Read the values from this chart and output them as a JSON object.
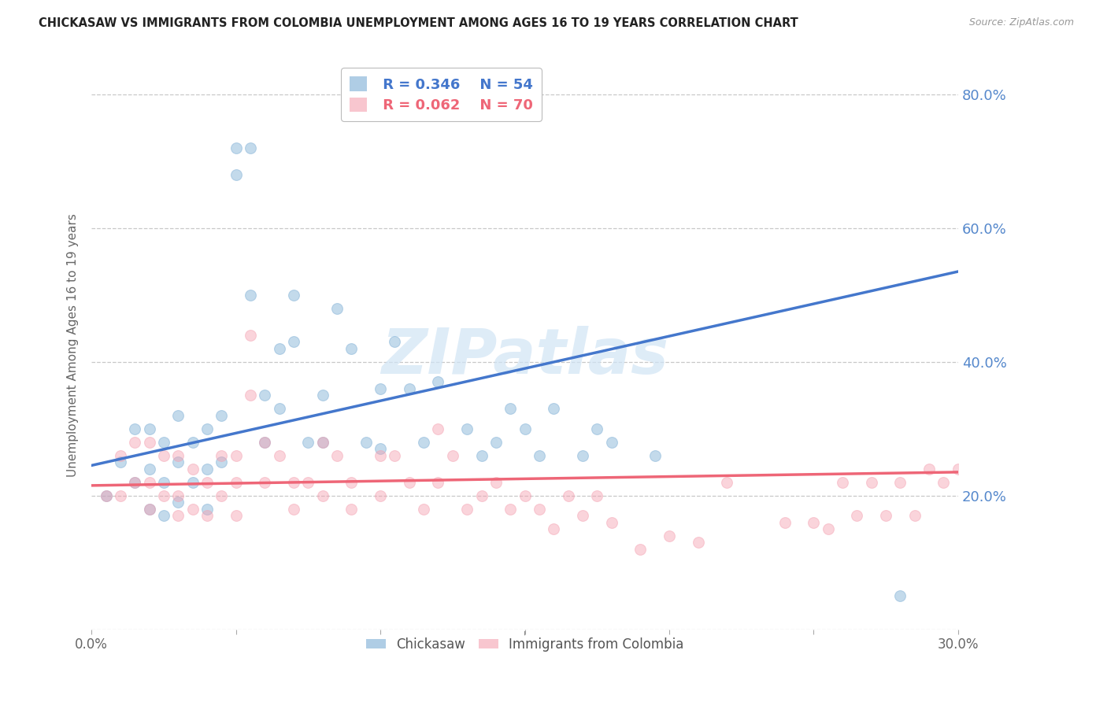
{
  "title": "CHICKASAW VS IMMIGRANTS FROM COLOMBIA UNEMPLOYMENT AMONG AGES 16 TO 19 YEARS CORRELATION CHART",
  "source": "Source: ZipAtlas.com",
  "ylabel": "Unemployment Among Ages 16 to 19 years",
  "xlim": [
    0.0,
    0.3
  ],
  "ylim": [
    0.0,
    0.85
  ],
  "y_ticks": [
    0.0,
    0.2,
    0.4,
    0.6,
    0.8
  ],
  "y_tick_labels_right": [
    "",
    "20.0%",
    "40.0%",
    "60.0%",
    "80.0%"
  ],
  "grid_color": "#c8c8c8",
  "background_color": "#ffffff",
  "chickasaw_color": "#7aadd4",
  "colombia_color": "#f4a0b0",
  "chickasaw_line_color": "#4477cc",
  "colombia_line_color": "#ee6677",
  "legend_R1": "R = 0.346",
  "legend_N1": "N = 54",
  "legend_R2": "R = 0.062",
  "legend_N2": "N = 70",
  "watermark": "ZIPatlas",
  "chickasaw_x": [
    0.005,
    0.01,
    0.015,
    0.015,
    0.02,
    0.02,
    0.02,
    0.025,
    0.025,
    0.025,
    0.03,
    0.03,
    0.03,
    0.035,
    0.035,
    0.04,
    0.04,
    0.04,
    0.045,
    0.045,
    0.05,
    0.05,
    0.055,
    0.055,
    0.06,
    0.06,
    0.065,
    0.065,
    0.07,
    0.07,
    0.075,
    0.08,
    0.08,
    0.085,
    0.09,
    0.095,
    0.1,
    0.1,
    0.105,
    0.11,
    0.115,
    0.12,
    0.13,
    0.135,
    0.14,
    0.145,
    0.15,
    0.155,
    0.16,
    0.17,
    0.175,
    0.18,
    0.195,
    0.28
  ],
  "chickasaw_y": [
    0.2,
    0.25,
    0.3,
    0.22,
    0.3,
    0.24,
    0.18,
    0.28,
    0.22,
    0.17,
    0.32,
    0.25,
    0.19,
    0.28,
    0.22,
    0.3,
    0.24,
    0.18,
    0.32,
    0.25,
    0.72,
    0.68,
    0.5,
    0.72,
    0.35,
    0.28,
    0.42,
    0.33,
    0.5,
    0.43,
    0.28,
    0.35,
    0.28,
    0.48,
    0.42,
    0.28,
    0.36,
    0.27,
    0.43,
    0.36,
    0.28,
    0.37,
    0.3,
    0.26,
    0.28,
    0.33,
    0.3,
    0.26,
    0.33,
    0.26,
    0.3,
    0.28,
    0.26,
    0.05
  ],
  "colombia_x": [
    0.005,
    0.01,
    0.01,
    0.015,
    0.015,
    0.02,
    0.02,
    0.02,
    0.025,
    0.025,
    0.03,
    0.03,
    0.03,
    0.035,
    0.035,
    0.04,
    0.04,
    0.045,
    0.045,
    0.05,
    0.05,
    0.05,
    0.055,
    0.055,
    0.06,
    0.06,
    0.065,
    0.07,
    0.07,
    0.075,
    0.08,
    0.08,
    0.085,
    0.09,
    0.09,
    0.1,
    0.1,
    0.105,
    0.11,
    0.115,
    0.12,
    0.12,
    0.125,
    0.13,
    0.135,
    0.14,
    0.145,
    0.15,
    0.155,
    0.16,
    0.165,
    0.17,
    0.175,
    0.18,
    0.19,
    0.2,
    0.21,
    0.22,
    0.24,
    0.25,
    0.255,
    0.26,
    0.265,
    0.27,
    0.275,
    0.28,
    0.285,
    0.29,
    0.295,
    0.3
  ],
  "colombia_y": [
    0.2,
    0.26,
    0.2,
    0.28,
    0.22,
    0.28,
    0.22,
    0.18,
    0.26,
    0.2,
    0.26,
    0.2,
    0.17,
    0.24,
    0.18,
    0.22,
    0.17,
    0.26,
    0.2,
    0.26,
    0.22,
    0.17,
    0.44,
    0.35,
    0.28,
    0.22,
    0.26,
    0.22,
    0.18,
    0.22,
    0.28,
    0.2,
    0.26,
    0.22,
    0.18,
    0.26,
    0.2,
    0.26,
    0.22,
    0.18,
    0.3,
    0.22,
    0.26,
    0.18,
    0.2,
    0.22,
    0.18,
    0.2,
    0.18,
    0.15,
    0.2,
    0.17,
    0.2,
    0.16,
    0.12,
    0.14,
    0.13,
    0.22,
    0.16,
    0.16,
    0.15,
    0.22,
    0.17,
    0.22,
    0.17,
    0.22,
    0.17,
    0.24,
    0.22,
    0.24
  ],
  "chickasaw_line": [
    0.0,
    0.3,
    0.245,
    0.535
  ],
  "colombia_line": [
    0.0,
    0.3,
    0.215,
    0.235
  ]
}
